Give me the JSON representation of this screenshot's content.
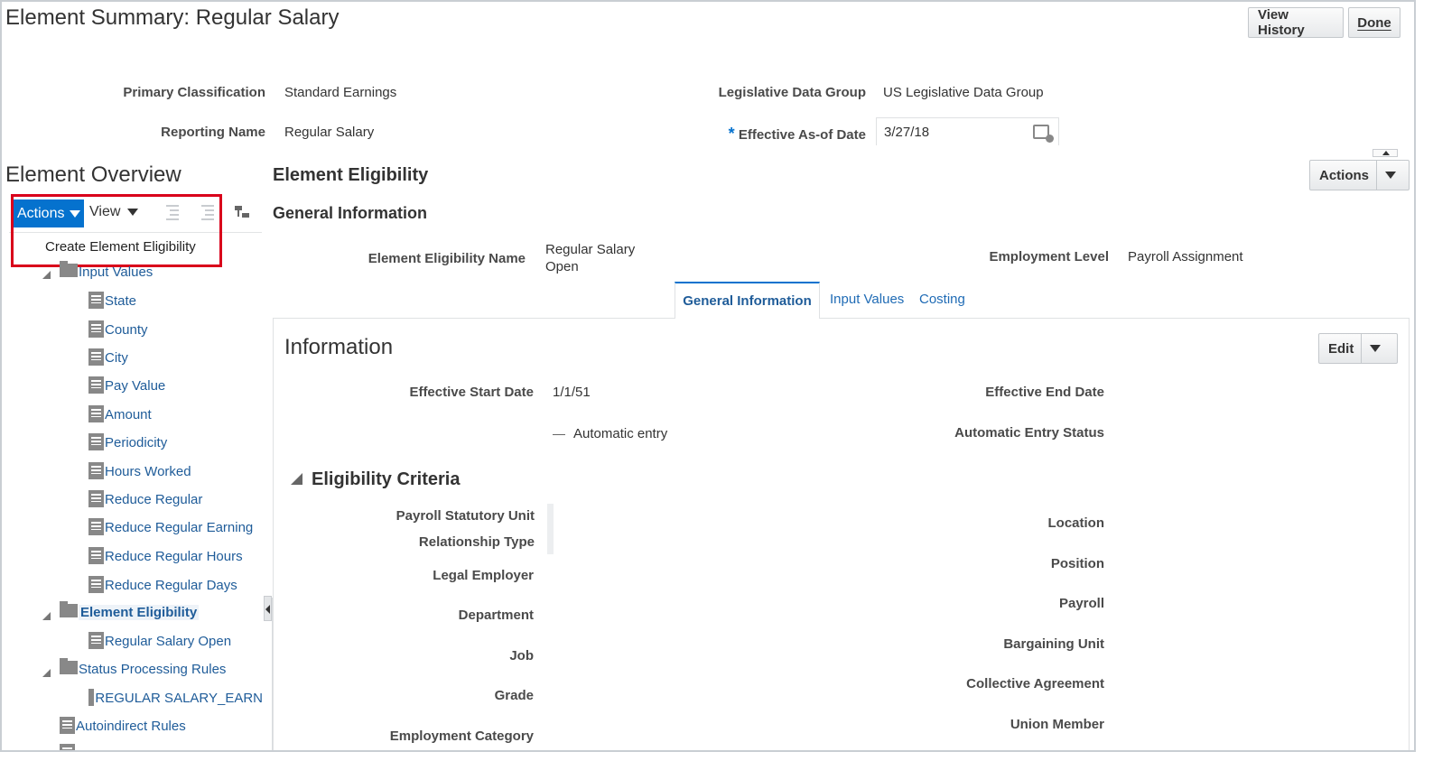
{
  "header": {
    "title": "Element Summary: Regular Salary",
    "view_history": "View History",
    "done": "Done"
  },
  "summary": {
    "primary_classification_label": "Primary Classification",
    "primary_classification_value": "Standard Earnings",
    "reporting_name_label": "Reporting Name",
    "reporting_name_value": "Regular Salary",
    "ldg_label": "Legislative Data Group",
    "ldg_value": "US Legislative Data Group",
    "required_mark": "*",
    "effective_date_label": "Effective As-of Date",
    "effective_date_value": "3/27/18"
  },
  "overview": {
    "title": "Element Overview",
    "actions_label": "Actions",
    "view_label": "View",
    "menu_item": "Create Element Eligibility",
    "tree": {
      "input_values": "Input Values",
      "children": [
        "State",
        "County",
        "City",
        "Pay Value",
        "Amount",
        "Periodicity",
        "Hours Worked",
        "Reduce Regular",
        "Reduce Regular Earning",
        "Reduce Regular Hours",
        "Reduce Regular Days"
      ],
      "element_eligibility": "Element Eligibility",
      "eligibility_child": "Regular Salary Open",
      "status_processing_rules": "Status Processing Rules",
      "status_child": "REGULAR SALARY_EARN",
      "autoindirect_rules": "Autoindirect Rules"
    }
  },
  "detail": {
    "title": "Element Eligibility",
    "actions_label": "Actions",
    "general_information": "General Information",
    "eligibility_name_label": "Element Eligibility Name",
    "eligibility_name_line1": "Regular Salary",
    "eligibility_name_line2": "Open",
    "employment_level_label": "Employment Level",
    "employment_level_value": "Payroll Assignment",
    "tabs": [
      "General Information",
      "Input Values",
      "Costing"
    ]
  },
  "information": {
    "title": "Information",
    "edit_label": "Edit",
    "effective_start_label": "Effective Start Date",
    "effective_start_value": "1/1/51",
    "effective_end_label": "Effective End Date",
    "automatic_entry": "Automatic entry",
    "automatic_entry_status_label": "Automatic Entry Status",
    "criteria_title": "Eligibility Criteria",
    "left_labels": [
      "Payroll Statutory Unit",
      "Relationship Type",
      "Legal Employer",
      "Department",
      "Job",
      "Grade",
      "Employment Category"
    ],
    "right_labels": [
      "Location",
      "Position",
      "Payroll",
      "Bargaining Unit",
      "Collective Agreement",
      "Union Member"
    ]
  }
}
